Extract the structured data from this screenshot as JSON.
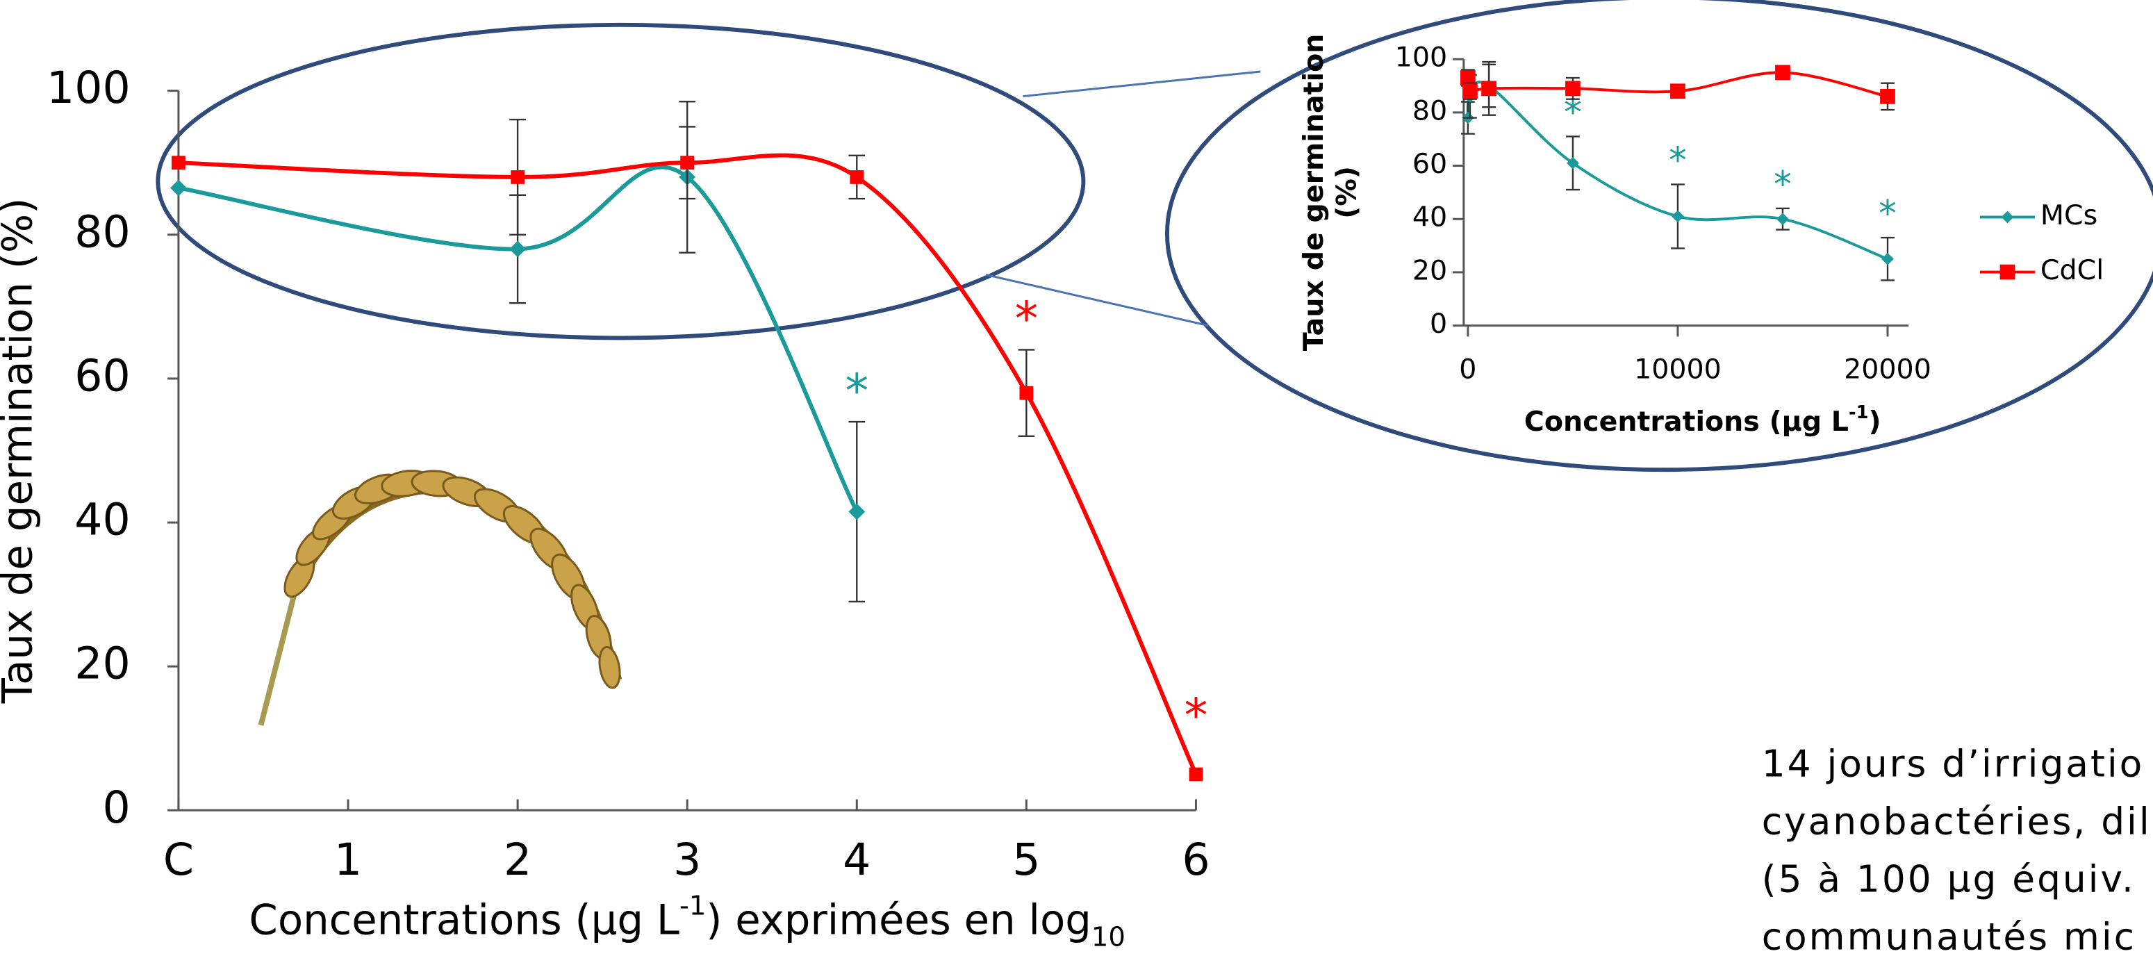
{
  "chart_data": [
    {
      "type": "line",
      "y_label": "Taux de germination (%)",
      "x_label": [
        "Concentrations (µg L",
        "-1",
        ") exprimées en log",
        "10"
      ],
      "xlim": [
        0,
        6
      ],
      "ylim": [
        0,
        100
      ],
      "xticks": [
        {
          "value": 0,
          "label": "C"
        },
        1,
        2,
        3,
        4,
        5,
        6
      ],
      "yticks": [
        0,
        20,
        40,
        60,
        80,
        100
      ],
      "series": [
        {
          "name": "MCs",
          "color": "#1a9a9a",
          "marker": "diamond",
          "x": [
            0,
            2,
            3,
            4
          ],
          "values": [
            86.5,
            78,
            88,
            41.5
          ],
          "errors": [
            null,
            7.5,
            10.5,
            12.5
          ],
          "significance": [
            null,
            null,
            null,
            "*"
          ]
        },
        {
          "name": "CdCl",
          "color": "#ff0000",
          "marker": "square",
          "x": [
            0,
            2,
            3,
            4,
            5,
            6
          ],
          "values": [
            90,
            88,
            90,
            88,
            58,
            5
          ],
          "errors": [
            null,
            8,
            5,
            3,
            6,
            null
          ],
          "significance": [
            null,
            null,
            null,
            null,
            "*",
            "*"
          ]
        }
      ]
    },
    {
      "type": "line",
      "y_label": [
        "Taux de germination",
        "(%)"
      ],
      "x_label": [
        "Concentrations (µg L",
        "-1",
        ")"
      ],
      "xlim": [
        -200,
        21000
      ],
      "ylim": [
        0,
        100
      ],
      "xticks": [
        0,
        10000,
        20000
      ],
      "yticks": [
        0,
        20,
        40,
        60,
        80,
        100
      ],
      "legend": "right",
      "series": [
        {
          "name": "MCs",
          "color": "#1a9a9a",
          "marker": "diamond",
          "x": [
            0,
            100,
            1000,
            5000,
            10000,
            15000,
            20000
          ],
          "values": [
            78,
            86,
            90,
            61,
            41,
            40,
            25
          ],
          "errors": [
            6,
            8,
            8,
            10,
            12,
            4,
            8
          ],
          "significance": [
            null,
            null,
            null,
            "*",
            "*",
            "*",
            "*"
          ]
        },
        {
          "name": "CdCl",
          "color": "#ff0000",
          "marker": "square",
          "x": [
            0,
            100,
            1000,
            5000,
            10000,
            15000,
            20000
          ],
          "values": [
            93,
            88,
            89,
            89,
            88,
            95,
            86
          ],
          "errors": [
            3,
            3,
            10,
            4,
            2,
            1,
            5
          ],
          "significance": [
            null,
            null,
            null,
            null,
            null,
            null,
            null
          ]
        }
      ]
    }
  ],
  "caption_lines": [
    "14 jours d’irrigatio",
    "cyanobactéries, dil",
    "(5 à 100 µg équiv.",
    "communautés mic"
  ]
}
